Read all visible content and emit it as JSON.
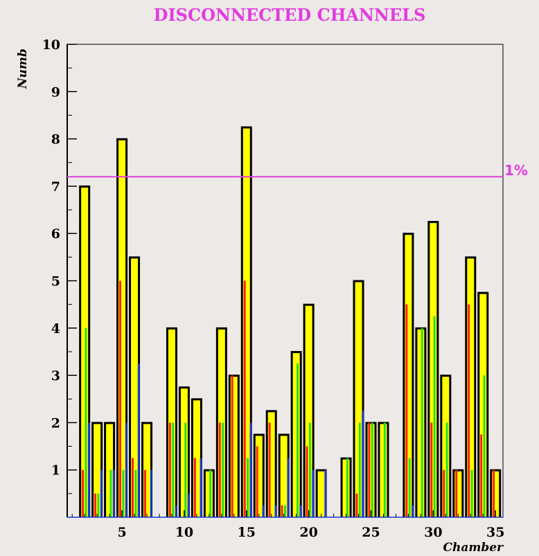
{
  "chart_data": {
    "type": "bar",
    "title": "DISCONNECTED CHANNELS",
    "xlabel": "Chamber",
    "ylabel": "Numb",
    "xlim": [
      0,
      35
    ],
    "ylim": [
      0,
      10
    ],
    "x_ticks": [
      5,
      10,
      15,
      20,
      25,
      30,
      35
    ],
    "y_ticks": [
      1,
      2,
      3,
      4,
      5,
      6,
      7,
      8,
      9,
      10
    ],
    "grid": false,
    "reference_line": {
      "y": 7.2,
      "label": "1%",
      "color": "#e040e0"
    },
    "colors": {
      "total": "#ffff00",
      "red": "#ff1a1a",
      "green": "#22dd22",
      "blue": "#1a3ad6",
      "outline": "#000000"
    },
    "bars": [
      {
        "x": 2,
        "total": 7,
        "sub": [
          1,
          4,
          2
        ]
      },
      {
        "x": 3,
        "total": 2,
        "sub": [
          0.5,
          0.5,
          1
        ]
      },
      {
        "x": 4,
        "total": 2,
        "sub": [
          0,
          1,
          1
        ]
      },
      {
        "x": 5,
        "total": 8,
        "sub": [
          5,
          1,
          2
        ]
      },
      {
        "x": 6,
        "total": 5.5,
        "sub": [
          1.25,
          1,
          3.25
        ]
      },
      {
        "x": 7,
        "total": 2,
        "sub": [
          1,
          0,
          1
        ]
      },
      {
        "x": 8,
        "total": 0,
        "sub": [
          0,
          0,
          0
        ]
      },
      {
        "x": 9,
        "total": 4,
        "sub": [
          2,
          2,
          0.25
        ]
      },
      {
        "x": 10,
        "total": 2.75,
        "sub": [
          0,
          2,
          0.5
        ]
      },
      {
        "x": 11,
        "total": 2.5,
        "sub": [
          1.25,
          0,
          1.25
        ]
      },
      {
        "x": 12,
        "total": 1,
        "sub": [
          0,
          1,
          0
        ]
      },
      {
        "x": 13,
        "total": 4,
        "sub": [
          2,
          2,
          0
        ]
      },
      {
        "x": 14,
        "total": 3,
        "sub": [
          3,
          0,
          0
        ]
      },
      {
        "x": 15,
        "total": 8.25,
        "sub": [
          5,
          1.25,
          2
        ]
      },
      {
        "x": 16,
        "total": 1.75,
        "sub": [
          1.5,
          0,
          0.25
        ]
      },
      {
        "x": 17,
        "total": 2.25,
        "sub": [
          2,
          0,
          0.25
        ]
      },
      {
        "x": 18,
        "total": 1.75,
        "sub": [
          0.25,
          0.25,
          1.25
        ]
      },
      {
        "x": 19,
        "total": 3.5,
        "sub": [
          0,
          3.25,
          0.25
        ]
      },
      {
        "x": 20,
        "total": 4.5,
        "sub": [
          1.5,
          2,
          1
        ]
      },
      {
        "x": 21,
        "total": 1,
        "sub": [
          0,
          0,
          1
        ]
      },
      {
        "x": 22,
        "total": 0,
        "sub": [
          0,
          0,
          0
        ]
      },
      {
        "x": 23,
        "total": 1.25,
        "sub": [
          0,
          1.25,
          0
        ]
      },
      {
        "x": 24,
        "total": 5,
        "sub": [
          0.5,
          2,
          2.25
        ]
      },
      {
        "x": 25,
        "total": 2,
        "sub": [
          2,
          2,
          0
        ]
      },
      {
        "x": 26,
        "total": 2,
        "sub": [
          0,
          2,
          0
        ]
      },
      {
        "x": 27,
        "total": 0,
        "sub": [
          0,
          0,
          0
        ]
      },
      {
        "x": 28,
        "total": 6,
        "sub": [
          4.5,
          1.25,
          0.25
        ]
      },
      {
        "x": 29,
        "total": 4,
        "sub": [
          0,
          4,
          0
        ]
      },
      {
        "x": 30,
        "total": 6.25,
        "sub": [
          2,
          4.25,
          0
        ]
      },
      {
        "x": 31,
        "total": 3,
        "sub": [
          1,
          2,
          0
        ]
      },
      {
        "x": 32,
        "total": 1,
        "sub": [
          1,
          0,
          0
        ]
      },
      {
        "x": 33,
        "total": 5.5,
        "sub": [
          4.5,
          1,
          0
        ]
      },
      {
        "x": 34,
        "total": 4.75,
        "sub": [
          1.75,
          3,
          0
        ]
      },
      {
        "x": 35,
        "total": 1,
        "sub": [
          1,
          0,
          0
        ]
      }
    ]
  }
}
